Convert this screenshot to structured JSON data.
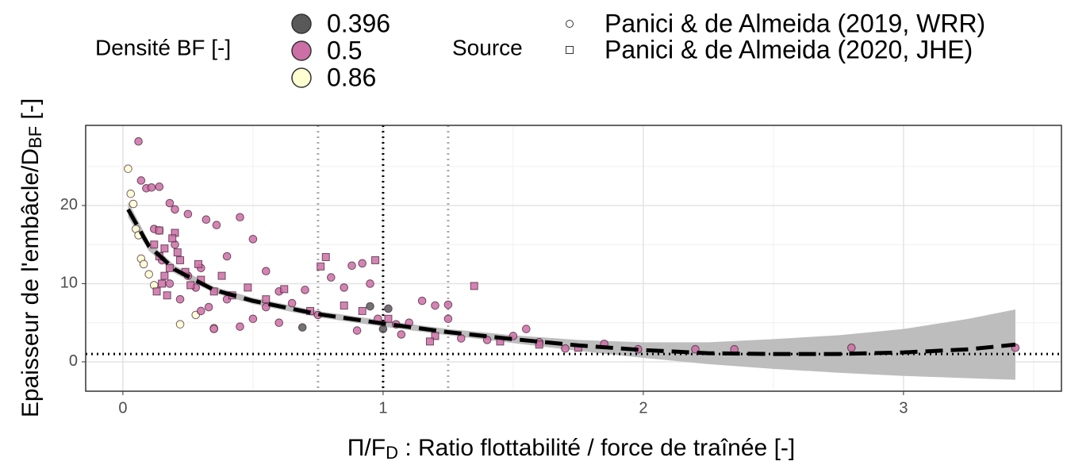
{
  "chart_data": {
    "type": "scatter",
    "x_label": [
      "Π/F",
      "D",
      " : Ratio flottabilité / force de traînée [-]"
    ],
    "y_label": [
      "Epaisseur de l'embâcle/D",
      "BF",
      " [-]"
    ],
    "xlim": [
      -0.143,
      3.607
    ],
    "ylim": [
      -3.76,
      30.25
    ],
    "xticks": [
      0,
      1,
      2,
      3
    ],
    "yticks": [
      0,
      10,
      20
    ],
    "xminor": [
      0.5,
      1.5,
      2.5,
      3.5
    ],
    "yminor": [
      5,
      15,
      25
    ],
    "grid": true,
    "density_legend": {
      "title": "Densité BF [-]",
      "levels": [
        0.396,
        0.5,
        0.86
      ],
      "colors": [
        "#595959",
        "#cc6fa6",
        "#ffffd2"
      ]
    },
    "source_legend": {
      "title": "Source"
    },
    "reference_lines": {
      "vertical": [
        0.75,
        1,
        1.25
      ],
      "vertical_colors": [
        "#aaaaaa",
        "#000000",
        "#aaaaaa"
      ],
      "horizontal": [
        1
      ],
      "horizontal_colors": [
        "#000000"
      ]
    },
    "series": [
      {
        "name": "Panici & de Almeida (2019, WRR)",
        "marker": "circle",
        "x": [
          0.02,
          0.03,
          0.04,
          0.05,
          0.06,
          0.07,
          0.08,
          0.1,
          0.12,
          0.14,
          0.22,
          0.28,
          0.35,
          0.69,
          0.95,
          1.0,
          1.02,
          0.06,
          0.07,
          0.09,
          0.11,
          0.14,
          0.18,
          0.2,
          0.25,
          0.32,
          0.36,
          0.45,
          0.5,
          0.4,
          0.3,
          0.55,
          0.6,
          0.65,
          0.7,
          0.8,
          0.85,
          0.88,
          0.92,
          0.95,
          0.75,
          0.6,
          0.5,
          0.45,
          0.35,
          0.3,
          1.05,
          1.1,
          1.15,
          1.2,
          1.25,
          1.25,
          1.3,
          1.4,
          1.5,
          1.55,
          1.6,
          1.7,
          1.85,
          1.98,
          2.2,
          2.35,
          2.8,
          3.43,
          0.2,
          0.15,
          0.25,
          0.12,
          0.18,
          0.22,
          0.28,
          0.4,
          0.33,
          0.55,
          1.07,
          0.9,
          0.98
        ],
        "y": [
          24.7,
          21.5,
          20.2,
          17,
          16.2,
          13.2,
          12.5,
          11.2,
          9.8,
          16.8,
          4.8,
          6.0,
          4.3,
          4.4,
          7.1,
          4.2,
          6.8,
          28.2,
          23.2,
          22.2,
          22.3,
          22.4,
          20.3,
          19.5,
          18.9,
          18.2,
          17.5,
          18.5,
          15.7,
          13.5,
          12,
          11.6,
          9,
          7.5,
          9.2,
          10.8,
          9.5,
          12.3,
          12.6,
          10,
          6,
          5,
          5.5,
          4.5,
          4.2,
          6.5,
          4.8,
          5,
          7.8,
          7.2,
          7.3,
          5.5,
          3,
          2.8,
          3.3,
          4.2,
          2.5,
          1.7,
          2.3,
          1.6,
          1.6,
          1.6,
          1.8,
          1.8,
          15,
          13,
          11,
          17,
          10,
          8,
          9.5,
          8,
          7,
          7,
          3.5,
          4,
          5.5
        ],
        "density": [
          0.86,
          0.86,
          0.86,
          0.86,
          0.86,
          0.86,
          0.86,
          0.86,
          0.86,
          0.86,
          0.86,
          0.86,
          0.86,
          0.396,
          0.396,
          0.396,
          0.396,
          0.5,
          0.5,
          0.5,
          0.5,
          0.5,
          0.5,
          0.5,
          0.5,
          0.5,
          0.5,
          0.5,
          0.5,
          0.5,
          0.5,
          0.5,
          0.5,
          0.5,
          0.5,
          0.5,
          0.5,
          0.5,
          0.5,
          0.5,
          0.5,
          0.5,
          0.5,
          0.5,
          0.5,
          0.5,
          0.5,
          0.5,
          0.5,
          0.5,
          0.5,
          0.5,
          0.5,
          0.5,
          0.5,
          0.5,
          0.5,
          0.5,
          0.5,
          0.5,
          0.5,
          0.5,
          0.5,
          0.5,
          0.5,
          0.5,
          0.5,
          0.5,
          0.5,
          0.5,
          0.5,
          0.5,
          0.5,
          0.5,
          0.5,
          0.5,
          0.5
        ]
      },
      {
        "name": "Panici & de Almeida (2020, JHE)",
        "marker": "square",
        "x": [
          0.12,
          0.14,
          0.16,
          0.18,
          0.2,
          0.15,
          0.13,
          0.17,
          0.22,
          0.24,
          0.26,
          0.3,
          0.35,
          0.38,
          0.42,
          0.48,
          0.55,
          0.62,
          0.72,
          0.78,
          0.76,
          0.97,
          0.85,
          0.92,
          1.02,
          1.2,
          1.18,
          1.35,
          1.45,
          1.6,
          1.75,
          0.19,
          0.16,
          0.14,
          0.21,
          0.29
        ],
        "y": [
          15,
          13.5,
          14.5,
          12,
          16.5,
          10,
          9,
          8.5,
          13,
          11.5,
          9.8,
          10.5,
          9,
          11,
          8.5,
          9.5,
          8,
          9.3,
          6.5,
          13.4,
          12.2,
          13,
          7.2,
          6.5,
          5.5,
          3.3,
          2.6,
          9.7,
          2.6,
          2.2,
          1.8,
          15.8,
          11,
          16.8,
          14,
          12.5
        ],
        "density": [
          0.5,
          0.5,
          0.5,
          0.5,
          0.5,
          0.5,
          0.5,
          0.5,
          0.5,
          0.5,
          0.5,
          0.5,
          0.5,
          0.5,
          0.5,
          0.5,
          0.5,
          0.5,
          0.5,
          0.5,
          0.5,
          0.5,
          0.5,
          0.5,
          0.5,
          0.5,
          0.5,
          0.5,
          0.5,
          0.5,
          0.5,
          0.5,
          0.5,
          0.5,
          0.5,
          0.5
        ]
      }
    ],
    "trend": {
      "x": [
        0.02,
        0.1,
        0.2,
        0.35,
        0.5,
        0.75,
        1,
        1.25,
        1.5,
        1.75,
        2,
        2.25,
        2.5,
        2.75,
        3,
        3.25,
        3.43
      ],
      "y": [
        19.5,
        14.8,
        11.8,
        9.2,
        7.8,
        6.1,
        4.9,
        3.8,
        2.9,
        2.1,
        1.5,
        1.1,
        1.0,
        1.0,
        1.2,
        1.6,
        2.2
      ],
      "lower": [
        18.5,
        14.2,
        11.3,
        8.8,
        7.4,
        5.7,
        4.5,
        3.4,
        2.4,
        1.4,
        0.5,
        -0.3,
        -0.9,
        -1.4,
        -1.8,
        -2.1,
        -2.3
      ],
      "upper": [
        20.5,
        15.4,
        12.3,
        9.6,
        8.2,
        6.5,
        5.3,
        4.2,
        3.4,
        2.8,
        2.5,
        2.5,
        2.9,
        3.4,
        4.2,
        5.5,
        6.7
      ],
      "color": "#000000",
      "band_color": "#bdbdbd"
    }
  }
}
